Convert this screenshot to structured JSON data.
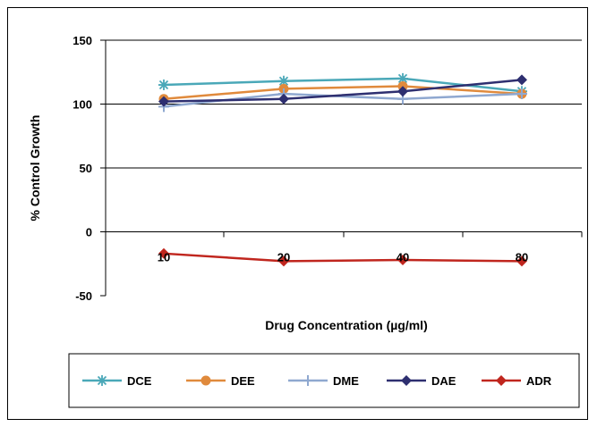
{
  "chart_data": {
    "type": "line",
    "title": "",
    "xlabel": "Drug Concentration (µg/ml)",
    "ylabel": "% Control Growth",
    "categories": [
      "10",
      "20",
      "40",
      "80"
    ],
    "ylim": [
      -50,
      150
    ],
    "yticks": [
      "150",
      "100",
      "50",
      "0",
      "-50"
    ],
    "ytick_values": [
      150,
      100,
      50,
      0,
      -50
    ],
    "grid": true,
    "legend_position": "bottom",
    "series": [
      {
        "name": "DCE",
        "color": "#4aa8b8",
        "marker": "asterisk",
        "values": [
          115,
          118,
          120,
          110
        ]
      },
      {
        "name": "DEE",
        "color": "#e08a3c",
        "marker": "circle",
        "values": [
          104,
          112,
          114,
          108
        ]
      },
      {
        "name": "DME",
        "color": "#8fa8d0",
        "marker": "plus",
        "values": [
          98,
          108,
          104,
          108
        ]
      },
      {
        "name": "DAE",
        "color": "#2e2f70",
        "marker": "diamond",
        "values": [
          102,
          104,
          110,
          119
        ]
      },
      {
        "name": "ADR",
        "color": "#c0261e",
        "marker": "diamond",
        "values": [
          -17,
          -23,
          -22,
          -23
        ]
      }
    ]
  }
}
